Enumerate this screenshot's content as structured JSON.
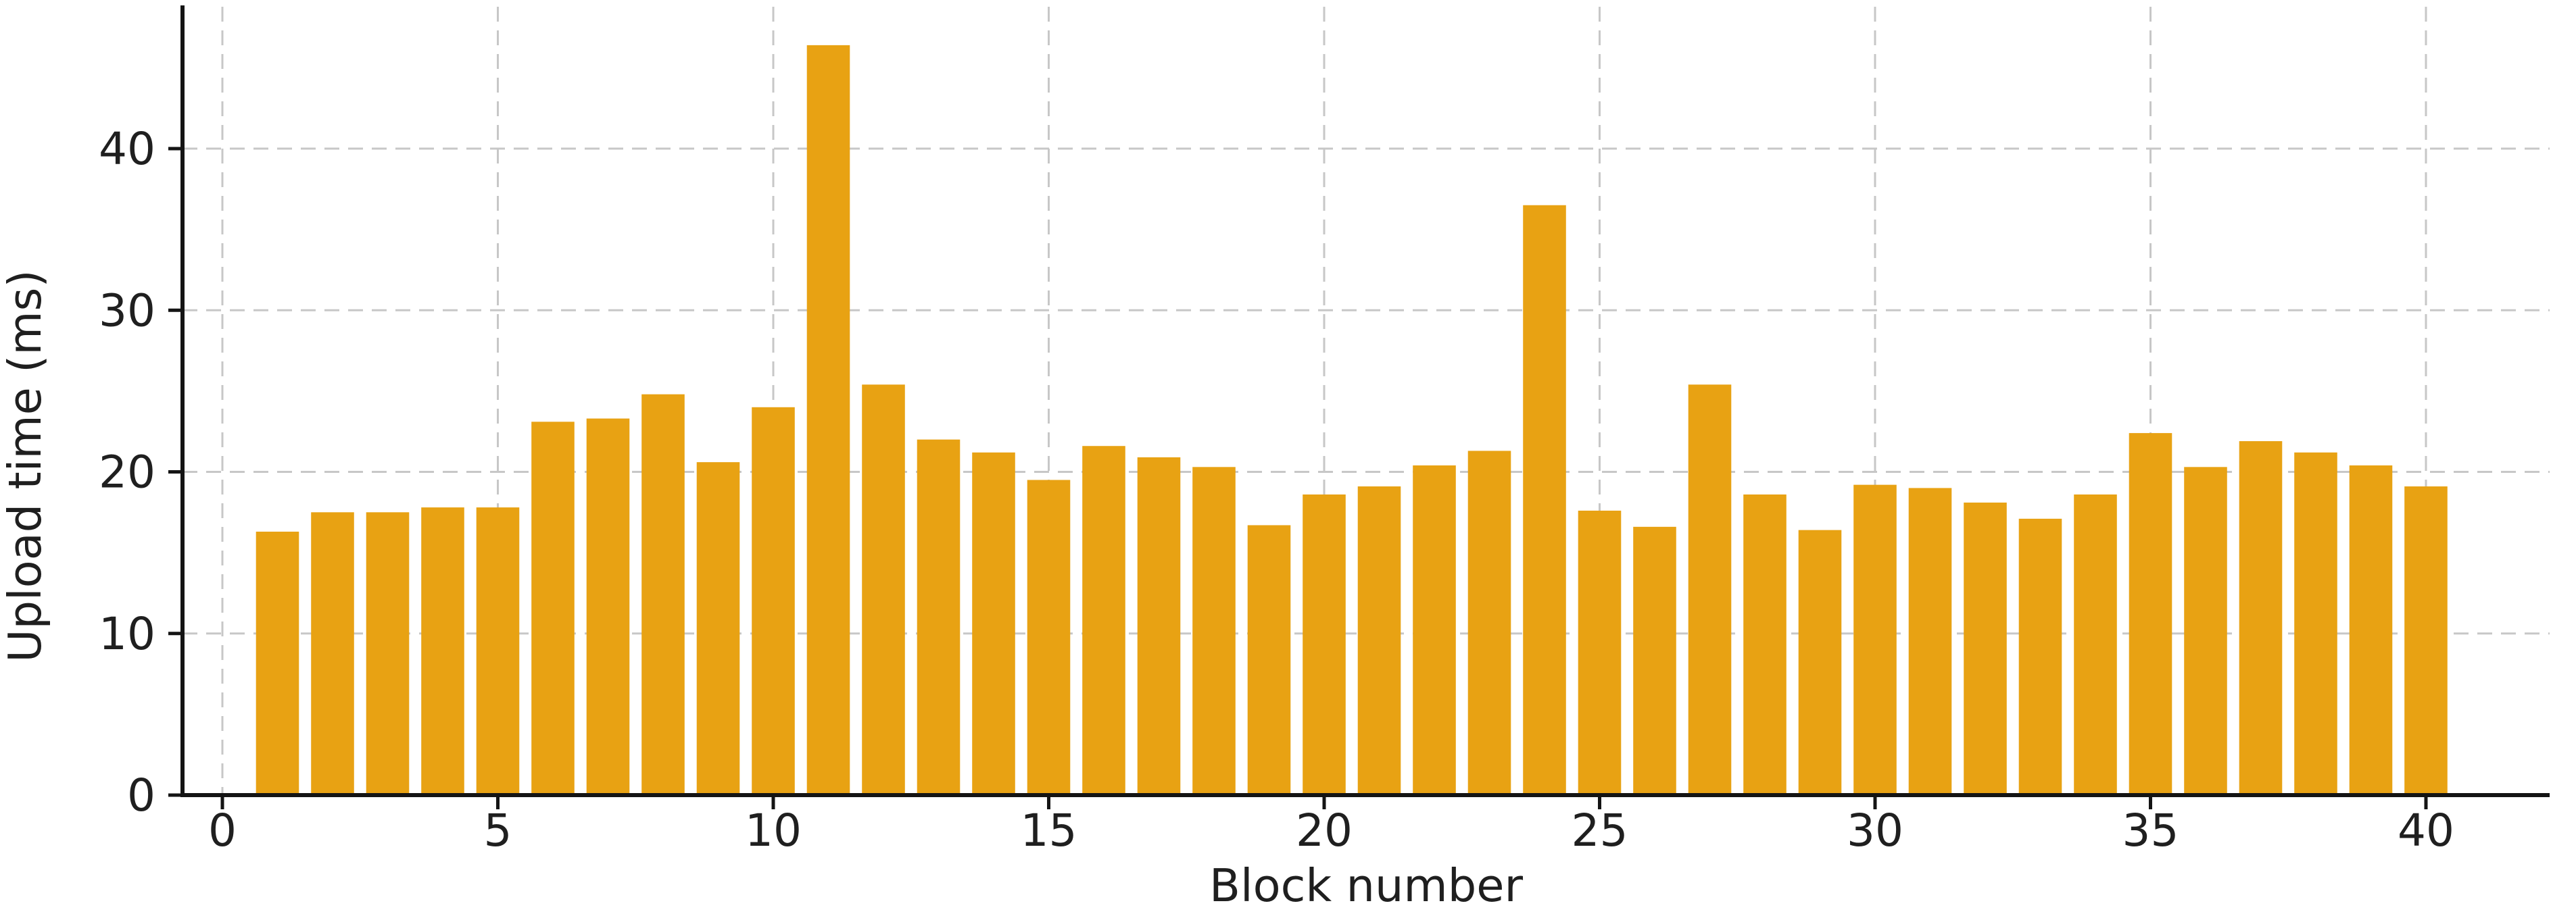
{
  "chart_data": {
    "type": "bar",
    "title": "",
    "xlabel": "Block number",
    "ylabel": "Upload time (ms)",
    "categories": [
      1,
      2,
      3,
      4,
      5,
      6,
      7,
      8,
      9,
      10,
      11,
      12,
      13,
      14,
      15,
      16,
      17,
      18,
      19,
      20,
      21,
      22,
      23,
      24,
      25,
      26,
      27,
      28,
      29,
      30,
      31,
      32,
      33,
      34,
      35,
      36,
      37,
      38,
      39,
      40
    ],
    "values": [
      16.3,
      17.5,
      17.5,
      17.8,
      17.8,
      23.1,
      23.3,
      24.8,
      20.6,
      24.0,
      46.4,
      25.4,
      22.0,
      21.2,
      19.5,
      21.6,
      20.9,
      20.3,
      16.7,
      18.6,
      19.1,
      20.4,
      21.3,
      36.5,
      17.6,
      16.6,
      25.4,
      18.6,
      16.4,
      19.2,
      19.0,
      18.1,
      17.1,
      18.6,
      22.4,
      20.3,
      21.9,
      21.2,
      20.4,
      19.1
    ],
    "x_ticks": [
      0,
      5,
      10,
      15,
      20,
      25,
      30,
      35,
      40
    ],
    "x_tick_labels": [
      "0",
      "5",
      "10",
      "15",
      "20",
      "25",
      "30",
      "35",
      "40"
    ],
    "y_ticks": [
      0,
      10,
      20,
      30,
      40
    ],
    "y_tick_labels": [
      "0",
      "10",
      "20",
      "30",
      "40"
    ],
    "xlim": [
      -0.72,
      42.2
    ],
    "ylim": [
      0,
      48.8
    ],
    "bar_width_fraction": 0.78,
    "grid": "dashed",
    "legend": "none",
    "colors": {
      "bar": "#E8A213",
      "grid": "#c7c7c7",
      "axis": "#141414",
      "tick_text": "#1f1f1f",
      "background": "#ffffff"
    }
  }
}
